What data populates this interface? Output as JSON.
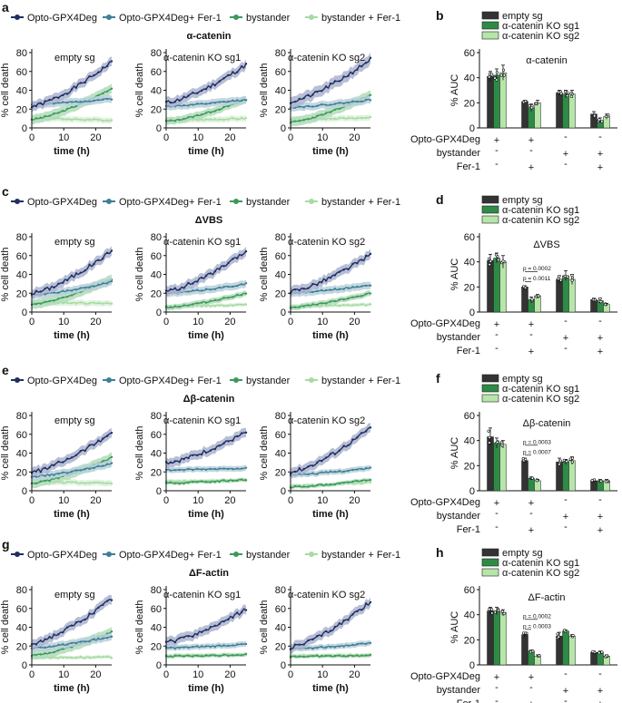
{
  "legend_items": [
    {
      "label": "Opto-GPX4Deg",
      "color": "#1f2f5f"
    },
    {
      "label": "Opto-GPX4Deg+ Fer-1",
      "color": "#3f7f96"
    },
    {
      "label": "bystander",
      "color": "#3c9a58"
    },
    {
      "label": "bystander + Fer-1",
      "color": "#a6dba4"
    }
  ],
  "bar_legend": [
    "empty sg",
    "α-catenin KO sg1",
    "α-catenin KO sg2"
  ],
  "colors": {
    "opto": "#1f2f5f",
    "opto_fer": "#3f7f96",
    "bystander": "#3c9a58",
    "bystander_fer": "#a6dba4",
    "band_opto": "#aab3cf",
    "band_opto_fer": "#b9d0da",
    "band_bystander": "#b2dbbb",
    "band_bystander_fer": "#daf0d8",
    "bar_empty": "#333333",
    "bar_sg1": "#2e8b46",
    "bar_sg2": "#b6e6a8"
  },
  "condition_labels": [
    "Opto-GPX4Deg",
    "bystander",
    "Fer-1"
  ],
  "chart_data": [
    {
      "panel": "a",
      "type": "line",
      "title": "α-catenin",
      "line_legend": true,
      "xlabel": "time (h)",
      "ylabel": "% cell death",
      "xlim": [
        0,
        25
      ],
      "ylim": [
        0,
        80
      ],
      "xticks": [
        0,
        10,
        20
      ],
      "yticks": [
        0,
        20,
        40,
        60,
        80
      ],
      "subplots": [
        {
          "subtitle": "empty sg",
          "series": [
            {
              "name": "Opto-GPX4Deg",
              "start": 23,
              "end": 70,
              "band": 5
            },
            {
              "name": "Opto-GPX4Deg+ Fer-1",
              "start": 25,
              "end": 31,
              "band": 4
            },
            {
              "name": "bystander",
              "start": 9,
              "end": 42,
              "band": 5
            },
            {
              "name": "bystander + Fer-1",
              "start": 10,
              "end": 8,
              "band": 3
            }
          ]
        },
        {
          "subtitle": "α-catenin KO sg1",
          "series": [
            {
              "name": "Opto-GPX4Deg",
              "start": 27,
              "end": 67,
              "band": 5
            },
            {
              "name": "Opto-GPX4Deg+ Fer-1",
              "start": 23,
              "end": 30,
              "band": 4
            },
            {
              "name": "bystander",
              "start": 7,
              "end": 30,
              "band": 4
            },
            {
              "name": "bystander + Fer-1",
              "start": 8,
              "end": 10,
              "band": 3
            }
          ]
        },
        {
          "subtitle": "α-catenin KO sg2",
          "series": [
            {
              "name": "Opto-GPX4Deg",
              "start": 28,
              "end": 73,
              "band": 6
            },
            {
              "name": "Opto-GPX4Deg+ Fer-1",
              "start": 22,
              "end": 30,
              "band": 4
            },
            {
              "name": "bystander",
              "start": 6,
              "end": 35,
              "band": 5
            },
            {
              "name": "bystander + Fer-1",
              "start": 9,
              "end": 11,
              "band": 3
            }
          ]
        }
      ]
    },
    {
      "panel": "c",
      "type": "line",
      "title": "ΔVBS",
      "line_legend": true,
      "xlabel": "time (h)",
      "ylabel": "% cell death",
      "xlim": [
        0,
        25
      ],
      "ylim": [
        0,
        80
      ],
      "xticks": [
        0,
        10,
        20
      ],
      "yticks": [
        0,
        20,
        40,
        60,
        80
      ],
      "subplots": [
        {
          "subtitle": "empty sg",
          "series": [
            {
              "name": "Opto-GPX4Deg",
              "start": 20,
              "end": 65,
              "band": 5
            },
            {
              "name": "Opto-GPX4Deg+ Fer-1",
              "start": 18,
              "end": 32,
              "band": 4
            },
            {
              "name": "bystander",
              "start": 8,
              "end": 35,
              "band": 5
            },
            {
              "name": "bystander + Fer-1",
              "start": 10,
              "end": 9,
              "band": 3
            }
          ]
        },
        {
          "subtitle": "α-catenin KO sg1",
          "series": [
            {
              "name": "Opto-GPX4Deg",
              "start": 22,
              "end": 64,
              "band": 5
            },
            {
              "name": "Opto-GPX4Deg+ Fer-1",
              "start": 20,
              "end": 30,
              "band": 4
            },
            {
              "name": "bystander",
              "start": 5,
              "end": 20,
              "band": 3
            },
            {
              "name": "bystander + Fer-1",
              "start": 6,
              "end": 8,
              "band": 2
            }
          ]
        },
        {
          "subtitle": "α-catenin KO sg2",
          "series": [
            {
              "name": "Opto-GPX4Deg",
              "start": 22,
              "end": 61,
              "band": 5
            },
            {
              "name": "Opto-GPX4Deg+ Fer-1",
              "start": 20,
              "end": 29,
              "band": 4
            },
            {
              "name": "bystander",
              "start": 5,
              "end": 20,
              "band": 3
            },
            {
              "name": "bystander + Fer-1",
              "start": 6,
              "end": 8,
              "band": 2
            }
          ]
        }
      ]
    },
    {
      "panel": "e",
      "type": "line",
      "title": "Δβ-catenin",
      "line_legend": true,
      "xlabel": "time (h)",
      "ylabel": "% cell death",
      "xlim": [
        0,
        25
      ],
      "ylim": [
        0,
        80
      ],
      "xticks": [
        0,
        10,
        20
      ],
      "yticks": [
        0,
        20,
        40,
        60,
        80
      ],
      "subplots": [
        {
          "subtitle": "empty sg",
          "series": [
            {
              "name": "Opto-GPX4Deg",
              "start": 20,
              "end": 62,
              "band": 5
            },
            {
              "name": "Opto-GPX4Deg+ Fer-1",
              "start": 15,
              "end": 29,
              "band": 4
            },
            {
              "name": "bystander",
              "start": 8,
              "end": 35,
              "band": 5
            },
            {
              "name": "bystander + Fer-1",
              "start": 9,
              "end": 8,
              "band": 3
            }
          ]
        },
        {
          "subtitle": "α-catenin KO sg1",
          "series": [
            {
              "name": "Opto-GPX4Deg",
              "start": 30,
              "end": 62,
              "band": 5
            },
            {
              "name": "Opto-GPX4Deg+ Fer-1",
              "start": 22,
              "end": 24,
              "band": 3
            },
            {
              "name": "bystander",
              "start": 8,
              "end": 12,
              "band": 2
            },
            {
              "name": "bystander + Fer-1",
              "start": 10,
              "end": 11,
              "band": 2
            }
          ]
        },
        {
          "subtitle": "α-catenin KO sg2",
          "series": [
            {
              "name": "Opto-GPX4Deg",
              "start": 20,
              "end": 67,
              "band": 5
            },
            {
              "name": "Opto-GPX4Deg+ Fer-1",
              "start": 17,
              "end": 24,
              "band": 3
            },
            {
              "name": "bystander",
              "start": 4,
              "end": 12,
              "band": 2
            },
            {
              "name": "bystander + Fer-1",
              "start": 5,
              "end": 9,
              "band": 2
            }
          ]
        }
      ]
    },
    {
      "panel": "g",
      "type": "line",
      "title": "ΔF-actin",
      "line_legend": true,
      "xlabel": "time (h)",
      "ylabel": "% cell death",
      "xlim": [
        0,
        25
      ],
      "ylim": [
        0,
        80
      ],
      "xticks": [
        0,
        10,
        20
      ],
      "yticks": [
        0,
        20,
        40,
        60,
        80
      ],
      "subplots": [
        {
          "subtitle": "empty sg",
          "series": [
            {
              "name": "Opto-GPX4Deg",
              "start": 23,
              "end": 70,
              "band": 5
            },
            {
              "name": "Opto-GPX4Deg+ Fer-1",
              "start": 18,
              "end": 30,
              "band": 4
            },
            {
              "name": "bystander",
              "start": 10,
              "end": 35,
              "band": 5
            },
            {
              "name": "bystander + Fer-1",
              "start": 8,
              "end": 8,
              "band": 2
            }
          ]
        },
        {
          "subtitle": "α-catenin KO sg1",
          "series": [
            {
              "name": "Opto-GPX4Deg",
              "start": 24,
              "end": 59,
              "band": 5
            },
            {
              "name": "Opto-GPX4Deg+ Fer-1",
              "start": 18,
              "end": 22,
              "band": 3
            },
            {
              "name": "bystander",
              "start": 9,
              "end": 11,
              "band": 2
            },
            {
              "name": "bystander + Fer-1",
              "start": 10,
              "end": 11,
              "band": 2
            }
          ]
        },
        {
          "subtitle": "α-catenin KO sg2",
          "series": [
            {
              "name": "Opto-GPX4Deg",
              "start": 19,
              "end": 67,
              "band": 5
            },
            {
              "name": "Opto-GPX4Deg+ Fer-1",
              "start": 17,
              "end": 23,
              "band": 3
            },
            {
              "name": "bystander",
              "start": 9,
              "end": 10,
              "band": 2
            },
            {
              "name": "bystander + Fer-1",
              "start": 10,
              "end": 10,
              "band": 2
            }
          ]
        }
      ]
    },
    {
      "panel": "b",
      "type": "bar",
      "title": "α-catenin",
      "ylabel": "% AUC",
      "ylim": [
        0,
        60
      ],
      "yticks": [
        0,
        20,
        40,
        60
      ],
      "groups": [
        {
          "opto": "+",
          "bystander": "-",
          "fer": "-"
        },
        {
          "opto": "+",
          "bystander": "-",
          "fer": "+"
        },
        {
          "opto": "-",
          "bystander": "+",
          "fer": "-"
        },
        {
          "opto": "-",
          "bystander": "+",
          "fer": "+"
        }
      ],
      "series": [
        {
          "name": "empty sg",
          "values": [
            41,
            21,
            28,
            11
          ],
          "errors": [
            4,
            1,
            2,
            2
          ]
        },
        {
          "name": "α-catenin KO sg1",
          "values": [
            42,
            16,
            27,
            6
          ],
          "errors": [
            5,
            3,
            3,
            2
          ]
        },
        {
          "name": "α-catenin KO sg2",
          "values": [
            44,
            20,
            27,
            9
          ],
          "errors": [
            6,
            2,
            3,
            2
          ]
        }
      ],
      "annotations": []
    },
    {
      "panel": "d",
      "type": "bar",
      "title": "ΔVBS",
      "ylabel": "% AUC",
      "ylim": [
        0,
        60
      ],
      "yticks": [
        0,
        20,
        40,
        60
      ],
      "groups": [
        {
          "opto": "+",
          "bystander": "-",
          "fer": "-"
        },
        {
          "opto": "+",
          "bystander": "-",
          "fer": "+"
        },
        {
          "opto": "-",
          "bystander": "+",
          "fer": "-"
        },
        {
          "opto": "-",
          "bystander": "+",
          "fer": "+"
        }
      ],
      "series": [
        {
          "name": "empty sg",
          "values": [
            41,
            20,
            26,
            10
          ],
          "errors": [
            5,
            1,
            3,
            1
          ]
        },
        {
          "name": "α-catenin KO sg1",
          "values": [
            43,
            10,
            29,
            9
          ],
          "errors": [
            4,
            2,
            4,
            2
          ]
        },
        {
          "name": "α-catenin KO sg2",
          "values": [
            40,
            13,
            26,
            6
          ],
          "errors": [
            5,
            1,
            4,
            1
          ]
        }
      ],
      "annotations": [
        {
          "text": "p = 0.0002",
          "group": 1,
          "from": 0,
          "to": 2,
          "level": 1
        },
        {
          "text": "p = 0.0011",
          "group": 1,
          "from": 0,
          "to": 1,
          "level": 0
        }
      ]
    },
    {
      "panel": "f",
      "type": "bar",
      "title": "Δβ-catenin",
      "ylabel": "% AUC",
      "ylim": [
        0,
        60
      ],
      "yticks": [
        0,
        20,
        40,
        60
      ],
      "groups": [
        {
          "opto": "+",
          "bystander": "-",
          "fer": "-"
        },
        {
          "opto": "+",
          "bystander": "-",
          "fer": "+"
        },
        {
          "opto": "-",
          "bystander": "+",
          "fer": "-"
        },
        {
          "opto": "-",
          "bystander": "+",
          "fer": "+"
        }
      ],
      "series": [
        {
          "name": "empty sg",
          "values": [
            43,
            24,
            23,
            8
          ],
          "errors": [
            7,
            2,
            3,
            1
          ]
        },
        {
          "name": "α-catenin KO sg1",
          "values": [
            38,
            10,
            23,
            8
          ],
          "errors": [
            4,
            1,
            2,
            1
          ]
        },
        {
          "name": "α-catenin KO sg2",
          "values": [
            37,
            8,
            24,
            8
          ],
          "errors": [
            3,
            1,
            3,
            1
          ]
        }
      ],
      "annotations": [
        {
          "text": "p = 0.0003",
          "group": 1,
          "from": 0,
          "to": 2,
          "level": 1
        },
        {
          "text": "p = 0.0007",
          "group": 1,
          "from": 0,
          "to": 1,
          "level": 0
        }
      ]
    },
    {
      "panel": "h",
      "type": "bar",
      "title": "ΔF-actin",
      "ylabel": "% AUC",
      "ylim": [
        0,
        60
      ],
      "yticks": [
        0,
        20,
        40,
        60
      ],
      "groups": [
        {
          "opto": "+",
          "bystander": "-",
          "fer": "-"
        },
        {
          "opto": "+",
          "bystander": "-",
          "fer": "+"
        },
        {
          "opto": "-",
          "bystander": "+",
          "fer": "-"
        },
        {
          "opto": "-",
          "bystander": "+",
          "fer": "+"
        }
      ],
      "series": [
        {
          "name": "empty sg",
          "values": [
            43,
            24,
            23,
            10
          ],
          "errors": [
            3,
            2,
            3,
            1
          ]
        },
        {
          "name": "α-catenin KO sg1",
          "values": [
            43,
            11,
            27,
            10
          ],
          "errors": [
            3,
            1,
            1,
            1
          ]
        },
        {
          "name": "α-catenin KO sg2",
          "values": [
            42,
            7,
            23,
            7
          ],
          "errors": [
            2,
            1,
            1,
            1
          ]
        }
      ],
      "annotations": [
        {
          "text": "p = 0.0002",
          "group": 1,
          "from": 0,
          "to": 2,
          "level": 1
        },
        {
          "text": "p = 0.0003",
          "group": 1,
          "from": 0,
          "to": 1,
          "level": 0
        }
      ]
    }
  ]
}
